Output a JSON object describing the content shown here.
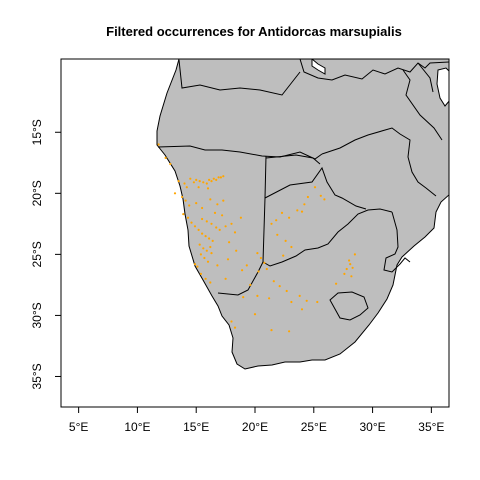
{
  "title": "Filtered occurrences for Antidorcas marsupialis",
  "colors": {
    "land": "#bebebe",
    "border": "#000000",
    "background": "#ffffff",
    "points": "#ffa500"
  },
  "axes": {
    "xlim": [
      3.5,
      36.5
    ],
    "ylim": [
      -37.5,
      -9.0
    ],
    "x_ticks": [
      {
        "value": 5,
        "label": "5°E"
      },
      {
        "value": 10,
        "label": "10°E"
      },
      {
        "value": 15,
        "label": "15°E"
      },
      {
        "value": 20,
        "label": "20°E"
      },
      {
        "value": 25,
        "label": "25°E"
      },
      {
        "value": 30,
        "label": "30°E"
      },
      {
        "value": 35,
        "label": "35°E"
      }
    ],
    "y_ticks": [
      {
        "value": -15,
        "label": "15°S"
      },
      {
        "value": -20,
        "label": "20°S"
      },
      {
        "value": -25,
        "label": "25°S"
      },
      {
        "value": -30,
        "label": "30°S"
      },
      {
        "value": -35,
        "label": "35°S"
      }
    ]
  },
  "occurrences": [
    [
      11.8,
      -16.0
    ],
    [
      13.2,
      -20.0
    ],
    [
      13.5,
      -19.0
    ],
    [
      14.0,
      -19.2
    ],
    [
      14.2,
      -19.5
    ],
    [
      14.5,
      -18.8
    ],
    [
      14.8,
      -19.1
    ],
    [
      15.0,
      -18.9
    ],
    [
      15.3,
      -19.0
    ],
    [
      15.6,
      -19.1
    ],
    [
      15.9,
      -19.2
    ],
    [
      16.1,
      -18.9
    ],
    [
      16.3,
      -19.0
    ],
    [
      16.5,
      -18.8
    ],
    [
      16.7,
      -18.9
    ],
    [
      16.9,
      -18.7
    ],
    [
      17.1,
      -18.7
    ],
    [
      17.3,
      -18.6
    ],
    [
      15.2,
      -19.5
    ],
    [
      16.0,
      -19.6
    ],
    [
      13.8,
      -20.3
    ],
    [
      14.1,
      -20.6
    ],
    [
      14.4,
      -21.0
    ],
    [
      15.0,
      -20.8
    ],
    [
      15.5,
      -21.2
    ],
    [
      16.2,
      -20.5
    ],
    [
      16.8,
      -20.9
    ],
    [
      17.3,
      -20.6
    ],
    [
      13.9,
      -21.7
    ],
    [
      14.3,
      -22.0
    ],
    [
      14.6,
      -22.4
    ],
    [
      14.9,
      -22.7
    ],
    [
      15.2,
      -23.0
    ],
    [
      15.5,
      -23.3
    ],
    [
      15.8,
      -23.5
    ],
    [
      16.1,
      -23.7
    ],
    [
      16.4,
      -23.9
    ],
    [
      15.3,
      -24.2
    ],
    [
      15.6,
      -24.5
    ],
    [
      15.9,
      -24.7
    ],
    [
      16.2,
      -24.4
    ],
    [
      15.4,
      -25.0
    ],
    [
      15.7,
      -25.3
    ],
    [
      16.0,
      -25.6
    ],
    [
      16.3,
      -24.9
    ],
    [
      15.5,
      -22.1
    ],
    [
      15.9,
      -22.3
    ],
    [
      16.3,
      -22.5
    ],
    [
      16.7,
      -22.8
    ],
    [
      17.0,
      -23.0
    ],
    [
      17.5,
      -22.7
    ],
    [
      18.0,
      -22.5
    ],
    [
      18.3,
      -23.2
    ],
    [
      17.8,
      -24.0
    ],
    [
      18.4,
      -24.7
    ],
    [
      16.6,
      -21.6
    ],
    [
      17.2,
      -21.8
    ],
    [
      15.1,
      -26.0
    ],
    [
      15.4,
      -26.6
    ],
    [
      15.8,
      -27.0
    ],
    [
      16.2,
      -27.3
    ],
    [
      17.5,
      -27.0
    ],
    [
      16.8,
      -25.9
    ],
    [
      18.9,
      -26.3
    ],
    [
      19.3,
      -25.9
    ],
    [
      20.2,
      -24.9
    ],
    [
      20.5,
      -25.3
    ],
    [
      20.8,
      -25.7
    ],
    [
      21.0,
      -26.2
    ],
    [
      20.3,
      -26.4
    ],
    [
      21.4,
      -22.5
    ],
    [
      21.8,
      -22.2
    ],
    [
      22.3,
      -21.6
    ],
    [
      22.9,
      -22.0
    ],
    [
      23.6,
      -21.4
    ],
    [
      24.0,
      -21.5
    ],
    [
      24.5,
      -20.3
    ],
    [
      25.1,
      -19.5
    ],
    [
      25.6,
      -20.2
    ],
    [
      25.9,
      -20.5
    ],
    [
      24.2,
      -20.9
    ],
    [
      21.9,
      -23.4
    ],
    [
      22.6,
      -23.9
    ],
    [
      23.1,
      -24.4
    ],
    [
      22.4,
      -25.1
    ],
    [
      21.6,
      -27.2
    ],
    [
      22.1,
      -27.6
    ],
    [
      22.7,
      -28.0
    ],
    [
      20.2,
      -28.4
    ],
    [
      21.2,
      -28.6
    ],
    [
      23.8,
      -28.4
    ],
    [
      24.4,
      -28.8
    ],
    [
      25.3,
      -28.9
    ],
    [
      24.0,
      -29.5
    ],
    [
      23.1,
      -28.9
    ],
    [
      27.8,
      -26.2
    ],
    [
      28.1,
      -25.8
    ],
    [
      28.3,
      -26.1
    ],
    [
      28.0,
      -25.5
    ],
    [
      28.5,
      -25.0
    ],
    [
      27.6,
      -26.6
    ],
    [
      28.2,
      -26.8
    ],
    [
      26.9,
      -27.4
    ],
    [
      21.4,
      -31.2
    ],
    [
      22.9,
      -31.3
    ],
    [
      18.0,
      -30.5
    ],
    [
      18.3,
      -31.0
    ],
    [
      19.6,
      -27.5
    ],
    [
      19.0,
      -28.5
    ],
    [
      20.0,
      -29.9
    ],
    [
      12.8,
      -17.6
    ],
    [
      12.4,
      -17.1
    ],
    [
      14.9,
      -25.8
    ],
    [
      18.8,
      -22.0
    ],
    [
      17.7,
      -25.4
    ]
  ]
}
